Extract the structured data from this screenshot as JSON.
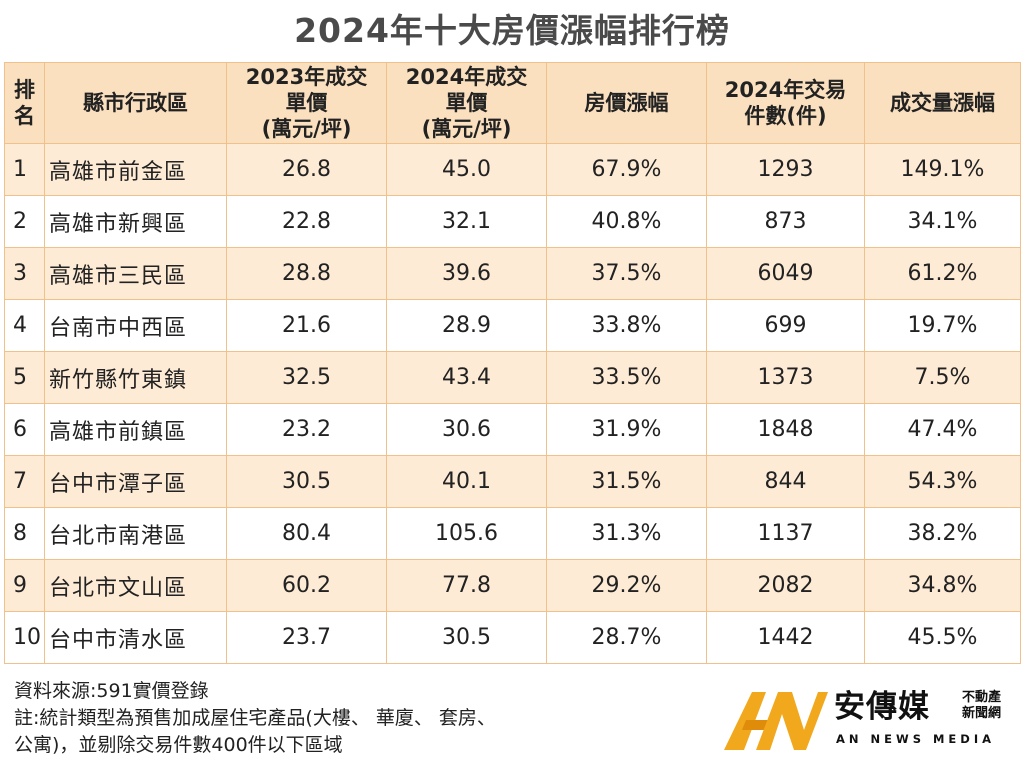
{
  "title": "2024年十大房價漲幅排行榜",
  "table": {
    "headers": {
      "rank": [
        "排",
        "名"
      ],
      "district": "縣市行政區",
      "price_2023": [
        "2023年成交",
        "單價",
        "(萬元/坪)"
      ],
      "price_2024": [
        "2024年成交",
        "單價",
        "(萬元/坪)"
      ],
      "price_change": "房價漲幅",
      "count_2024": [
        "2024年交易",
        "件數(件)"
      ],
      "volume_change": "成交量漲幅"
    },
    "rows": [
      {
        "rank": "1",
        "district": "高雄市前金區",
        "price_2023": "26.8",
        "price_2024": "45.0",
        "price_change": "67.9%",
        "count_2024": "1293",
        "volume_change": "149.1%"
      },
      {
        "rank": "2",
        "district": "高雄市新興區",
        "price_2023": "22.8",
        "price_2024": "32.1",
        "price_change": "40.8%",
        "count_2024": "873",
        "volume_change": "34.1%"
      },
      {
        "rank": "3",
        "district": "高雄市三民區",
        "price_2023": "28.8",
        "price_2024": "39.6",
        "price_change": "37.5%",
        "count_2024": "6049",
        "volume_change": "61.2%"
      },
      {
        "rank": "4",
        "district": "台南市中西區",
        "price_2023": "21.6",
        "price_2024": "28.9",
        "price_change": "33.8%",
        "count_2024": "699",
        "volume_change": "19.7%"
      },
      {
        "rank": "5",
        "district": "新竹縣竹東鎮",
        "price_2023": "32.5",
        "price_2024": "43.4",
        "price_change": "33.5%",
        "count_2024": "1373",
        "volume_change": "7.5%"
      },
      {
        "rank": "6",
        "district": "高雄市前鎮區",
        "price_2023": "23.2",
        "price_2024": "30.6",
        "price_change": "31.9%",
        "count_2024": "1848",
        "volume_change": "47.4%"
      },
      {
        "rank": "7",
        "district": "台中市潭子區",
        "price_2023": "30.5",
        "price_2024": "40.1",
        "price_change": "31.5%",
        "count_2024": "844",
        "volume_change": "54.3%"
      },
      {
        "rank": "8",
        "district": "台北市南港區",
        "price_2023": "80.4",
        "price_2024": "105.6",
        "price_change": "31.3%",
        "count_2024": "1137",
        "volume_change": "38.2%"
      },
      {
        "rank": "9",
        "district": "台北市文山區",
        "price_2023": "60.2",
        "price_2024": "77.8",
        "price_change": "29.2%",
        "count_2024": "2082",
        "volume_change": "34.8%"
      },
      {
        "rank": "10",
        "district": "台中市清水區",
        "price_2023": "23.7",
        "price_2024": "30.5",
        "price_change": "28.7%",
        "count_2024": "1442",
        "volume_change": "45.5%"
      }
    ]
  },
  "footnotes": {
    "source": "資料來源:591實價登錄",
    "note_line1": "註:統計類型為預售加成屋住宅產品(大樓、 華廈、 套房、",
    "note_line2": "公寓)，並剔除交易件數400件以下區域"
  },
  "logo": {
    "name_cn": "安傳媒",
    "sub_line1": "不動產",
    "sub_line2": "新聞網",
    "name_en": "AN NEWS MEDIA",
    "colors": {
      "gold": "#f2a81d",
      "gold_dark": "#e08c0b",
      "text": "#111111"
    }
  },
  "colors": {
    "header_bg": "#fbe0bf",
    "row_odd_bg": "#fdebd5",
    "row_even_bg": "#ffffff",
    "border": "#f0c18a",
    "title": "#4a4a4a"
  },
  "chart_data": {
    "type": "table",
    "title": "2024年十大房價漲幅排行榜",
    "columns": [
      "排名",
      "縣市行政區",
      "2023年成交單價(萬元/坪)",
      "2024年成交單價(萬元/坪)",
      "房價漲幅",
      "2024年交易件數(件)",
      "成交量漲幅"
    ],
    "rows": [
      [
        1,
        "高雄市前金區",
        26.8,
        45.0,
        "67.9%",
        1293,
        "149.1%"
      ],
      [
        2,
        "高雄市新興區",
        22.8,
        32.1,
        "40.8%",
        873,
        "34.1%"
      ],
      [
        3,
        "高雄市三民區",
        28.8,
        39.6,
        "37.5%",
        6049,
        "61.2%"
      ],
      [
        4,
        "台南市中西區",
        21.6,
        28.9,
        "33.8%",
        699,
        "19.7%"
      ],
      [
        5,
        "新竹縣竹東鎮",
        32.5,
        43.4,
        "33.5%",
        1373,
        "7.5%"
      ],
      [
        6,
        "高雄市前鎮區",
        23.2,
        30.6,
        "31.9%",
        1848,
        "47.4%"
      ],
      [
        7,
        "台中市潭子區",
        30.5,
        40.1,
        "31.5%",
        844,
        "54.3%"
      ],
      [
        8,
        "台北市南港區",
        80.4,
        105.6,
        "31.3%",
        1137,
        "38.2%"
      ],
      [
        9,
        "台北市文山區",
        60.2,
        77.8,
        "29.2%",
        2082,
        "34.8%"
      ],
      [
        10,
        "台中市清水區",
        23.7,
        30.5,
        "28.7%",
        1442,
        "45.5%"
      ]
    ]
  }
}
